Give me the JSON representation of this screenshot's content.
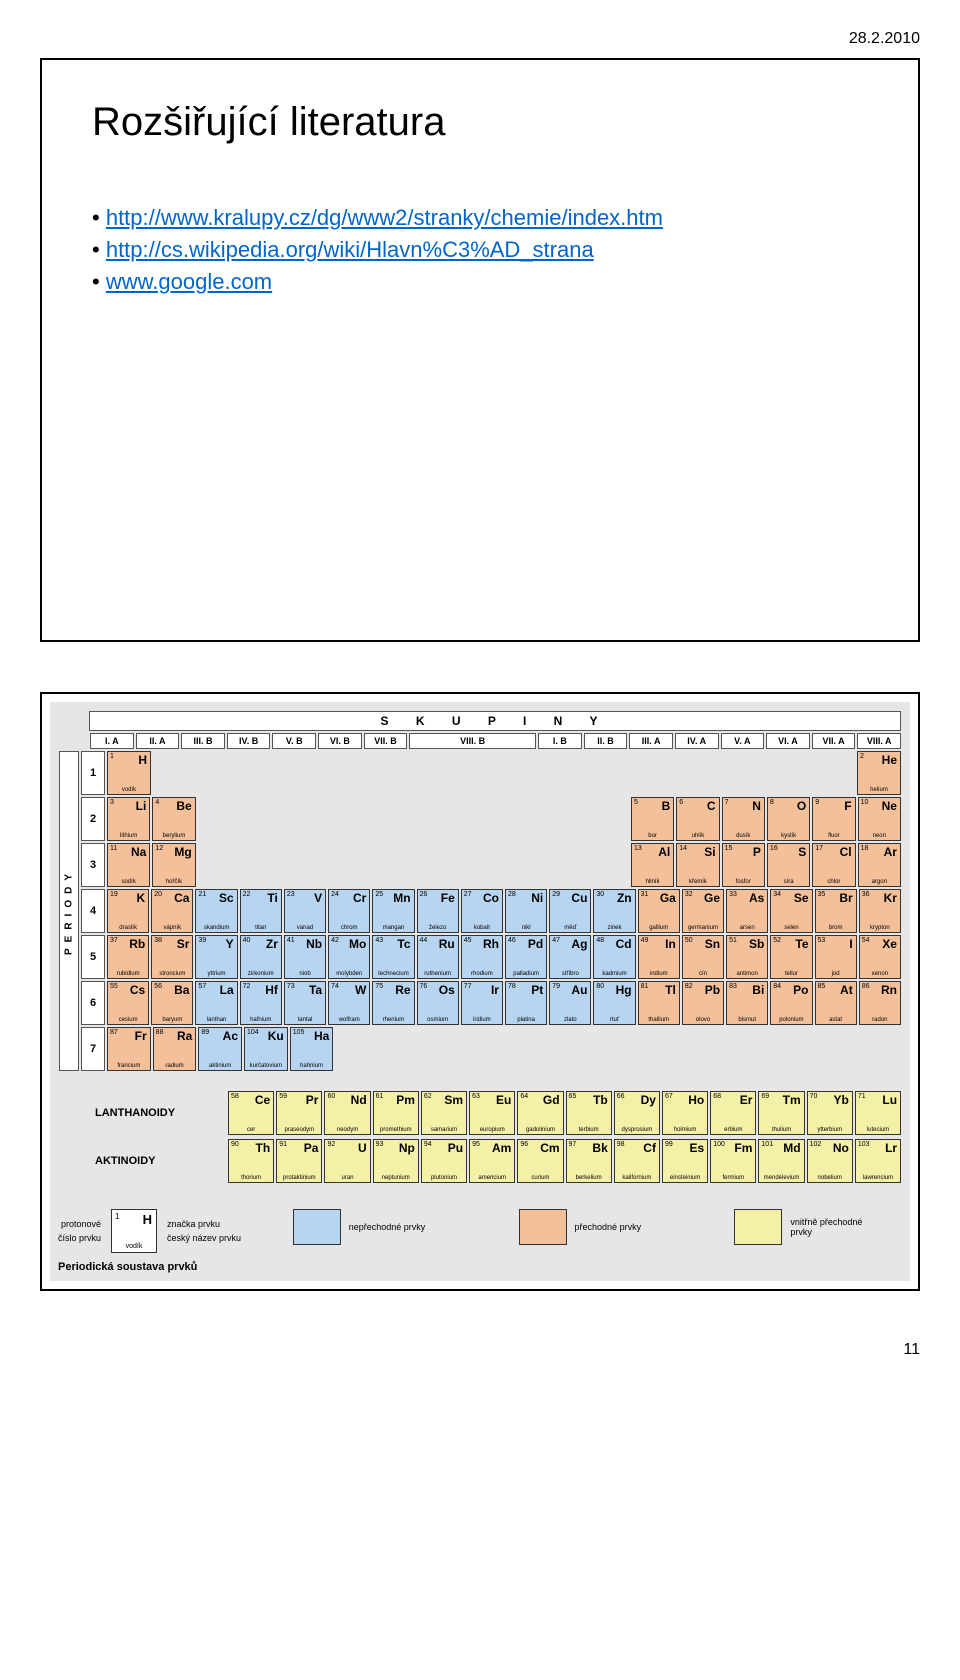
{
  "date_header": "28.2.2010",
  "page_number": "11",
  "slide1": {
    "title": "Rozšiřující literatura",
    "links": [
      "http://www.kralupy.cz/dg/www2/stranky/chemie/index.htm",
      "http://cs.wikipedia.org/wiki/Hlavn%C3%AD_strana",
      "www.google.com"
    ]
  },
  "ptable": {
    "skupiny_label": "S   K   U   P   I   N   Y",
    "periody_label": "PERIODY",
    "group_headers": [
      "I. A",
      "II. A",
      "III. B",
      "IV. B",
      "V. B",
      "VI. B",
      "VII. B",
      "VIII. B",
      "I. B",
      "II. B",
      "III. A",
      "IV. A",
      "V. A",
      "VI. A",
      "VII. A",
      "VIII. A"
    ],
    "group_span_viii": 3,
    "periods": [
      "1",
      "2",
      "3",
      "4",
      "5",
      "6",
      "7"
    ],
    "rows": [
      [
        {
          "n": "1",
          "s": "H",
          "nm": "vodík",
          "c": "neprechodne"
        },
        null,
        null,
        null,
        null,
        null,
        null,
        null,
        null,
        null,
        null,
        null,
        null,
        null,
        null,
        null,
        null,
        {
          "n": "2",
          "s": "He",
          "nm": "helium",
          "c": "neprechodne"
        }
      ],
      [
        {
          "n": "3",
          "s": "Li",
          "nm": "lithium",
          "c": "neprechodne"
        },
        {
          "n": "4",
          "s": "Be",
          "nm": "berylium",
          "c": "neprechodne"
        },
        null,
        null,
        null,
        null,
        null,
        null,
        null,
        null,
        null,
        null,
        {
          "n": "5",
          "s": "B",
          "nm": "bor",
          "c": "neprechodne"
        },
        {
          "n": "6",
          "s": "C",
          "nm": "uhlík",
          "c": "neprechodne"
        },
        {
          "n": "7",
          "s": "N",
          "nm": "dusík",
          "c": "neprechodne"
        },
        {
          "n": "8",
          "s": "O",
          "nm": "kyslík",
          "c": "neprechodne"
        },
        {
          "n": "9",
          "s": "F",
          "nm": "fluor",
          "c": "neprechodne"
        },
        {
          "n": "10",
          "s": "Ne",
          "nm": "neon",
          "c": "neprechodne"
        }
      ],
      [
        {
          "n": "11",
          "s": "Na",
          "nm": "sodík",
          "c": "neprechodne"
        },
        {
          "n": "12",
          "s": "Mg",
          "nm": "hořčík",
          "c": "neprechodne"
        },
        null,
        null,
        null,
        null,
        null,
        null,
        null,
        null,
        null,
        null,
        {
          "n": "13",
          "s": "Al",
          "nm": "hliník",
          "c": "neprechodne"
        },
        {
          "n": "14",
          "s": "Si",
          "nm": "křemík",
          "c": "neprechodne"
        },
        {
          "n": "15",
          "s": "P",
          "nm": "fosfor",
          "c": "neprechodne"
        },
        {
          "n": "16",
          "s": "S",
          "nm": "síra",
          "c": "neprechodne"
        },
        {
          "n": "17",
          "s": "Cl",
          "nm": "chlor",
          "c": "neprechodne"
        },
        {
          "n": "18",
          "s": "Ar",
          "nm": "argon",
          "c": "neprechodne"
        }
      ],
      [
        {
          "n": "19",
          "s": "K",
          "nm": "draslík",
          "c": "neprechodne"
        },
        {
          "n": "20",
          "s": "Ca",
          "nm": "vápník",
          "c": "neprechodne"
        },
        {
          "n": "21",
          "s": "Sc",
          "nm": "skandium",
          "c": "prechodne"
        },
        {
          "n": "22",
          "s": "Ti",
          "nm": "titan",
          "c": "prechodne"
        },
        {
          "n": "23",
          "s": "V",
          "nm": "vanad",
          "c": "prechodne"
        },
        {
          "n": "24",
          "s": "Cr",
          "nm": "chrom",
          "c": "prechodne"
        },
        {
          "n": "25",
          "s": "Mn",
          "nm": "mangan",
          "c": "prechodne"
        },
        {
          "n": "26",
          "s": "Fe",
          "nm": "železo",
          "c": "prechodne"
        },
        {
          "n": "27",
          "s": "Co",
          "nm": "kobalt",
          "c": "prechodne"
        },
        {
          "n": "28",
          "s": "Ni",
          "nm": "nikl",
          "c": "prechodne"
        },
        {
          "n": "29",
          "s": "Cu",
          "nm": "měď",
          "c": "prechodne"
        },
        {
          "n": "30",
          "s": "Zn",
          "nm": "zinek",
          "c": "prechodne"
        },
        {
          "n": "31",
          "s": "Ga",
          "nm": "gallium",
          "c": "neprechodne"
        },
        {
          "n": "32",
          "s": "Ge",
          "nm": "germanium",
          "c": "neprechodne"
        },
        {
          "n": "33",
          "s": "As",
          "nm": "arsen",
          "c": "neprechodne"
        },
        {
          "n": "34",
          "s": "Se",
          "nm": "selen",
          "c": "neprechodne"
        },
        {
          "n": "35",
          "s": "Br",
          "nm": "brom",
          "c": "neprechodne"
        },
        {
          "n": "36",
          "s": "Kr",
          "nm": "krypton",
          "c": "neprechodne"
        }
      ],
      [
        {
          "n": "37",
          "s": "Rb",
          "nm": "rubidium",
          "c": "neprechodne"
        },
        {
          "n": "38",
          "s": "Sr",
          "nm": "stroncium",
          "c": "neprechodne"
        },
        {
          "n": "39",
          "s": "Y",
          "nm": "yttrium",
          "c": "prechodne"
        },
        {
          "n": "40",
          "s": "Zr",
          "nm": "zirkonium",
          "c": "prechodne"
        },
        {
          "n": "41",
          "s": "Nb",
          "nm": "niob",
          "c": "prechodne"
        },
        {
          "n": "42",
          "s": "Mo",
          "nm": "molybden",
          "c": "prechodne"
        },
        {
          "n": "43",
          "s": "Tc",
          "nm": "technecium",
          "c": "prechodne"
        },
        {
          "n": "44",
          "s": "Ru",
          "nm": "ruthenium",
          "c": "prechodne"
        },
        {
          "n": "45",
          "s": "Rh",
          "nm": "rhodium",
          "c": "prechodne"
        },
        {
          "n": "46",
          "s": "Pd",
          "nm": "palladium",
          "c": "prechodne"
        },
        {
          "n": "47",
          "s": "Ag",
          "nm": "stříbro",
          "c": "prechodne"
        },
        {
          "n": "48",
          "s": "Cd",
          "nm": "kadmium",
          "c": "prechodne"
        },
        {
          "n": "49",
          "s": "In",
          "nm": "indium",
          "c": "neprechodne"
        },
        {
          "n": "50",
          "s": "Sn",
          "nm": "cín",
          "c": "neprechodne"
        },
        {
          "n": "51",
          "s": "Sb",
          "nm": "antimon",
          "c": "neprechodne"
        },
        {
          "n": "52",
          "s": "Te",
          "nm": "tellur",
          "c": "neprechodne"
        },
        {
          "n": "53",
          "s": "I",
          "nm": "jod",
          "c": "neprechodne"
        },
        {
          "n": "54",
          "s": "Xe",
          "nm": "xenon",
          "c": "neprechodne"
        }
      ],
      [
        {
          "n": "55",
          "s": "Cs",
          "nm": "cesium",
          "c": "neprechodne"
        },
        {
          "n": "56",
          "s": "Ba",
          "nm": "baryum",
          "c": "neprechodne"
        },
        {
          "n": "57",
          "s": "La",
          "nm": "lanthan",
          "c": "prechodne"
        },
        {
          "n": "72",
          "s": "Hf",
          "nm": "hafnium",
          "c": "prechodne"
        },
        {
          "n": "73",
          "s": "Ta",
          "nm": "tantal",
          "c": "prechodne"
        },
        {
          "n": "74",
          "s": "W",
          "nm": "wolfram",
          "c": "prechodne"
        },
        {
          "n": "75",
          "s": "Re",
          "nm": "rhenium",
          "c": "prechodne"
        },
        {
          "n": "76",
          "s": "Os",
          "nm": "osmium",
          "c": "prechodne"
        },
        {
          "n": "77",
          "s": "Ir",
          "nm": "iridium",
          "c": "prechodne"
        },
        {
          "n": "78",
          "s": "Pt",
          "nm": "platina",
          "c": "prechodne"
        },
        {
          "n": "79",
          "s": "Au",
          "nm": "zlato",
          "c": "prechodne"
        },
        {
          "n": "80",
          "s": "Hg",
          "nm": "rtuť",
          "c": "prechodne"
        },
        {
          "n": "81",
          "s": "Tl",
          "nm": "thallium",
          "c": "neprechodne"
        },
        {
          "n": "82",
          "s": "Pb",
          "nm": "olovo",
          "c": "neprechodne"
        },
        {
          "n": "83",
          "s": "Bi",
          "nm": "bismut",
          "c": "neprechodne"
        },
        {
          "n": "84",
          "s": "Po",
          "nm": "polonium",
          "c": "neprechodne"
        },
        {
          "n": "85",
          "s": "At",
          "nm": "astat",
          "c": "neprechodne"
        },
        {
          "n": "86",
          "s": "Rn",
          "nm": "radon",
          "c": "neprechodne"
        }
      ],
      [
        {
          "n": "87",
          "s": "Fr",
          "nm": "francium",
          "c": "neprechodne"
        },
        {
          "n": "88",
          "s": "Ra",
          "nm": "radium",
          "c": "neprechodne"
        },
        {
          "n": "89",
          "s": "Ac",
          "nm": "aktinium",
          "c": "prechodne"
        },
        {
          "n": "104",
          "s": "Ku",
          "nm": "kurčatovium",
          "c": "prechodne"
        },
        {
          "n": "105",
          "s": "Ha",
          "nm": "hahnium",
          "c": "prechodne"
        },
        null,
        null,
        null,
        null,
        null,
        null,
        null,
        null,
        null,
        null,
        null,
        null,
        null
      ]
    ],
    "lanthanoids_label": "LANTHANOIDY",
    "lanthanoids": [
      {
        "n": "58",
        "s": "Ce",
        "nm": "cer"
      },
      {
        "n": "59",
        "s": "Pr",
        "nm": "praseodym"
      },
      {
        "n": "60",
        "s": "Nd",
        "nm": "neodym"
      },
      {
        "n": "61",
        "s": "Pm",
        "nm": "promethium"
      },
      {
        "n": "62",
        "s": "Sm",
        "nm": "samarium"
      },
      {
        "n": "63",
        "s": "Eu",
        "nm": "europium"
      },
      {
        "n": "64",
        "s": "Gd",
        "nm": "gadolinium"
      },
      {
        "n": "65",
        "s": "Tb",
        "nm": "terbium"
      },
      {
        "n": "66",
        "s": "Dy",
        "nm": "dysprosium"
      },
      {
        "n": "67",
        "s": "Ho",
        "nm": "holmium"
      },
      {
        "n": "68",
        "s": "Er",
        "nm": "erbium"
      },
      {
        "n": "69",
        "s": "Tm",
        "nm": "thulium"
      },
      {
        "n": "70",
        "s": "Yb",
        "nm": "ytterbium"
      },
      {
        "n": "71",
        "s": "Lu",
        "nm": "lutecium"
      }
    ],
    "actinoids_label": "AKTINOIDY",
    "actinoids": [
      {
        "n": "90",
        "s": "Th",
        "nm": "thorium"
      },
      {
        "n": "91",
        "s": "Pa",
        "nm": "protaktinium"
      },
      {
        "n": "92",
        "s": "U",
        "nm": "uran"
      },
      {
        "n": "93",
        "s": "Np",
        "nm": "neptunium"
      },
      {
        "n": "94",
        "s": "Pu",
        "nm": "plutonium"
      },
      {
        "n": "95",
        "s": "Am",
        "nm": "americium"
      },
      {
        "n": "96",
        "s": "Cm",
        "nm": "curium"
      },
      {
        "n": "97",
        "s": "Bk",
        "nm": "berkelium"
      },
      {
        "n": "98",
        "s": "Cf",
        "nm": "kalifornium"
      },
      {
        "n": "99",
        "s": "Es",
        "nm": "einsteinium"
      },
      {
        "n": "100",
        "s": "Fm",
        "nm": "fermium"
      },
      {
        "n": "101",
        "s": "Md",
        "nm": "mendelevium"
      },
      {
        "n": "102",
        "s": "No",
        "nm": "nobelium"
      },
      {
        "n": "103",
        "s": "Lr",
        "nm": "lawrencium"
      }
    ],
    "legend": {
      "key_sample": {
        "n": "1",
        "s": "H",
        "nm": "vodík"
      },
      "key_labels_left": [
        "protonové",
        "číslo prvku"
      ],
      "key_labels_right": [
        "značka prvku",
        "český název prvku"
      ],
      "swatches": [
        {
          "class": "s1",
          "label": "nepřechodné prvky"
        },
        {
          "class": "s2",
          "label": "přechodné prvky"
        },
        {
          "class": "s3",
          "label": "vnitřně přechodné prvky"
        }
      ]
    },
    "caption": "Periodická soustava prvků",
    "colors": {
      "neprechodne": "#f4c09a",
      "prechodne": "#b7d5f0",
      "vnitrni": "#f5f0a8",
      "background": "#e6e6e6",
      "border": "#333333"
    }
  }
}
